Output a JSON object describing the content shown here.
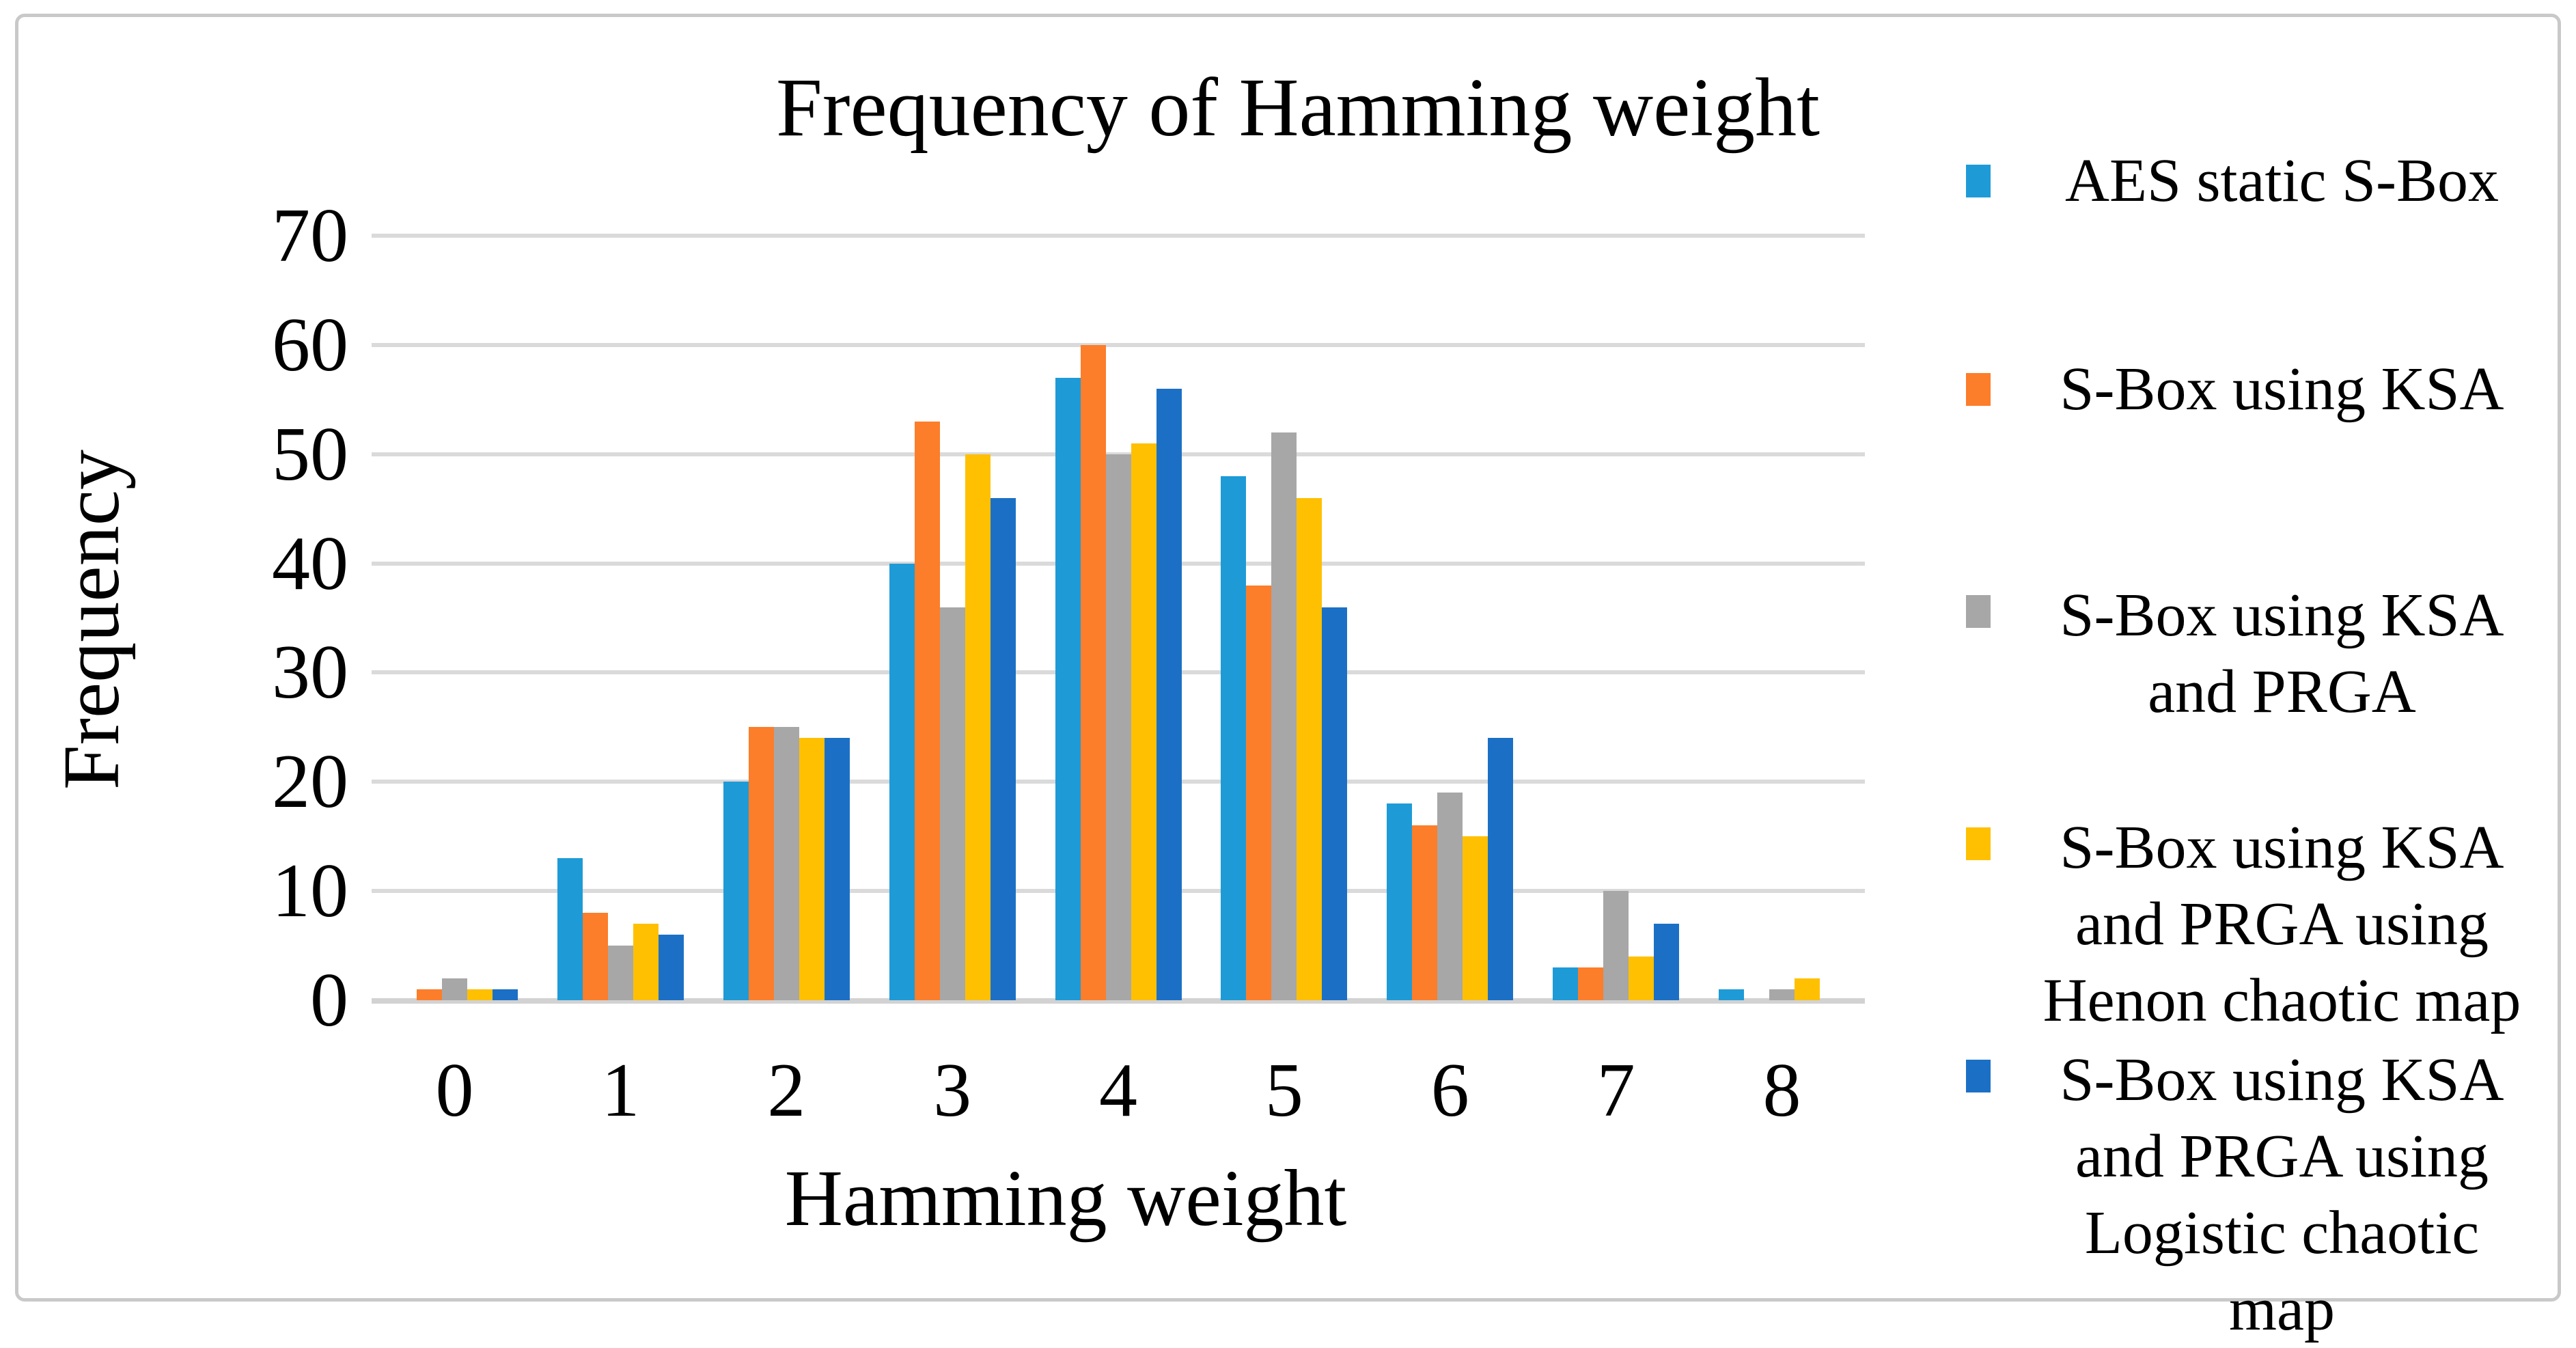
{
  "figure": {
    "title": "Frequency of Hamming weight",
    "x_axis_title": "Hamming weight",
    "y_axis_title": "Frequency"
  },
  "chart_data": {
    "type": "bar",
    "title": "Frequency of Hamming weight",
    "xlabel": "Hamming weight",
    "ylabel": "Frequency",
    "ylim": [
      0,
      70
    ],
    "y_ticks": [
      0,
      10,
      20,
      30,
      40,
      50,
      60,
      70
    ],
    "grid": true,
    "legend_position": "right",
    "categories": [
      "0",
      "1",
      "2",
      "3",
      "4",
      "5",
      "6",
      "7",
      "8"
    ],
    "series": [
      {
        "name": "AES static S-Box",
        "legend_lines": [
          "AES static S-Box"
        ],
        "color": "#1E9BD7",
        "values": [
          0,
          13,
          20,
          40,
          57,
          48,
          18,
          3,
          1
        ]
      },
      {
        "name": "S-Box using KSA",
        "legend_lines": [
          "S-Box using KSA"
        ],
        "color": "#FC7D2A",
        "values": [
          1,
          8,
          25,
          53,
          60,
          38,
          16,
          3,
          0
        ]
      },
      {
        "name": "S-Box using KSA and PRGA",
        "legend_lines": [
          "S-Box using KSA",
          "and PRGA"
        ],
        "color": "#A7A7A7",
        "values": [
          2,
          5,
          25,
          36,
          50,
          52,
          19,
          10,
          1
        ]
      },
      {
        "name": "S-Box using KSA and PRGA using Henon chaotic map",
        "legend_lines": [
          "S-Box using KSA",
          "and PRGA using",
          "Henon chaotic map"
        ],
        "color": "#FFC001",
        "values": [
          1,
          7,
          24,
          50,
          51,
          46,
          15,
          4,
          2
        ]
      },
      {
        "name": "S-Box using KSA and PRGA using Logistic chaotic map",
        "legend_lines": [
          "S-Box using KSA",
          "and PRGA using",
          "Logistic chaotic",
          "map"
        ],
        "color": "#1B70C6",
        "values": [
          1,
          6,
          24,
          46,
          56,
          36,
          24,
          7,
          0
        ]
      }
    ]
  },
  "style_colors": {
    "gridline": "#dadada",
    "frame_border": "#c9c9c9",
    "text": "#000000"
  }
}
